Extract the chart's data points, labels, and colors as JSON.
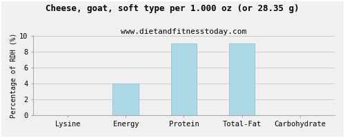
{
  "title": "Cheese, goat, soft type per 1.000 oz (or 28.35 g)",
  "subtitle": "www.dietandfitnesstoday.com",
  "categories": [
    "Lysine",
    "Energy",
    "Protein",
    "Total-Fat",
    "Carbohydrate"
  ],
  "values": [
    0.05,
    4.0,
    9.0,
    9.0,
    0.05
  ],
  "bar_color": "#ADD8E6",
  "bar_edge_color": "#9DC8DC",
  "ylabel": "Percentage of RDH (%)",
  "ylim": [
    0,
    10
  ],
  "yticks": [
    0,
    2,
    4,
    6,
    8,
    10
  ],
  "background_color": "#f0f0f0",
  "plot_bg_color": "#f0f0f0",
  "grid_color": "#cccccc",
  "border_color": "#aaaaaa",
  "title_fontsize": 9,
  "subtitle_fontsize": 8,
  "ylabel_fontsize": 7,
  "tick_fontsize": 7.5
}
